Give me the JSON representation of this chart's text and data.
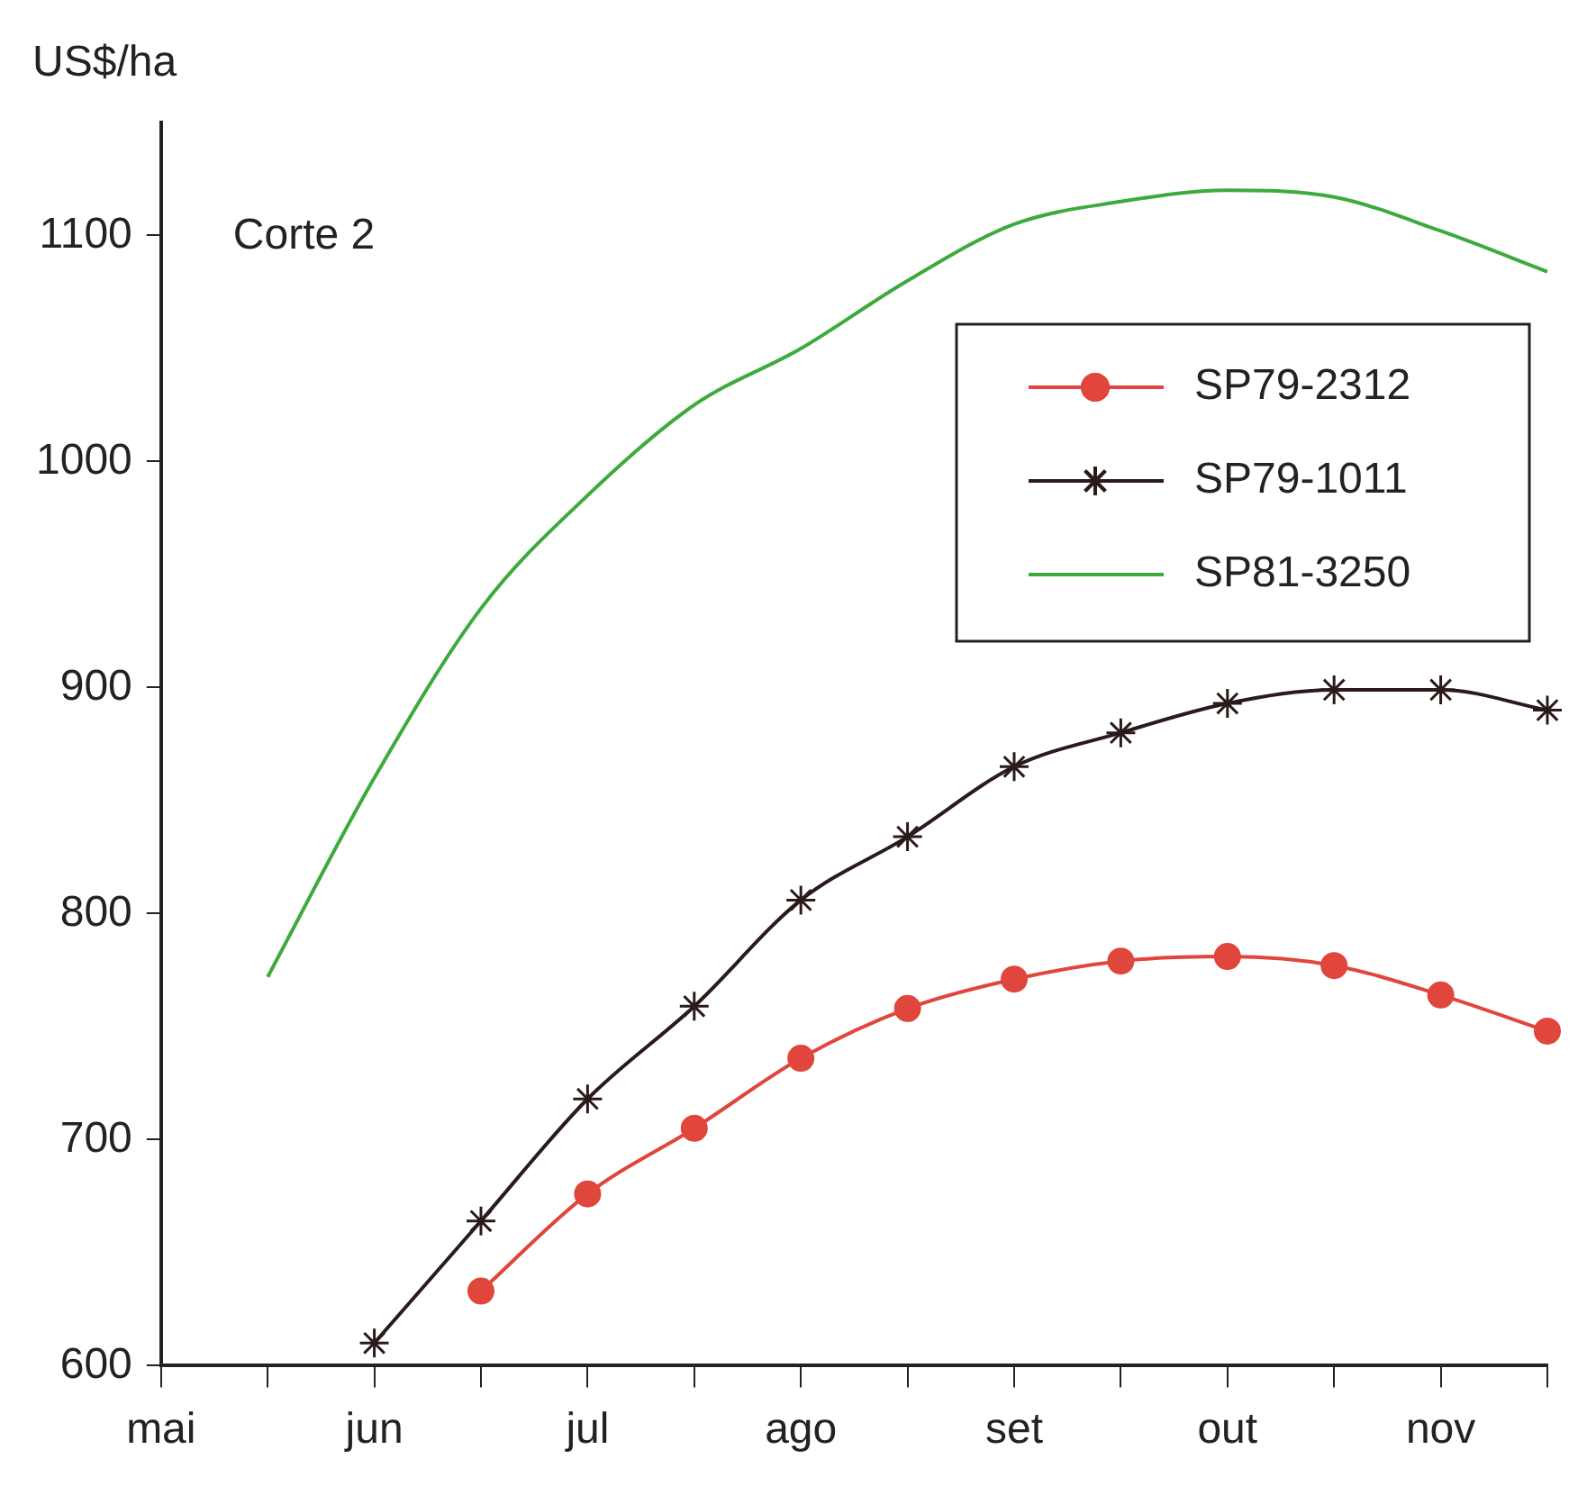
{
  "chart_data": {
    "type": "line",
    "ylabel": "US$/ha",
    "annotations": [
      "Corte 2"
    ],
    "categories": [
      "mai",
      null,
      "jun",
      null,
      "jul",
      null,
      "ago",
      null,
      "set",
      null,
      "out",
      null,
      "nov",
      null
    ],
    "ylim": [
      600,
      1150
    ],
    "yticks": [
      600,
      700,
      800,
      900,
      1000,
      1100
    ],
    "grid": false,
    "legend": "top right",
    "series": [
      {
        "name": "SP79-2312",
        "color": "#e0463c",
        "marker": "circle",
        "values": [
          null,
          null,
          null,
          633,
          676,
          705,
          736,
          758,
          771,
          779,
          781,
          777,
          764,
          748
        ]
      },
      {
        "name": "SP79-1011",
        "color": "#2a1a1a",
        "marker": "cross",
        "values": [
          null,
          null,
          610,
          664,
          718,
          759,
          806,
          834,
          865,
          880,
          893,
          899,
          899,
          890
        ]
      },
      {
        "name": "SP81-3250",
        "color": "#3daa3d",
        "marker": "none",
        "values": [
          null,
          772,
          860,
          935,
          985,
          1025,
          1050,
          1080,
          1105,
          1115,
          1120,
          1117,
          1102,
          1084
        ]
      }
    ]
  }
}
